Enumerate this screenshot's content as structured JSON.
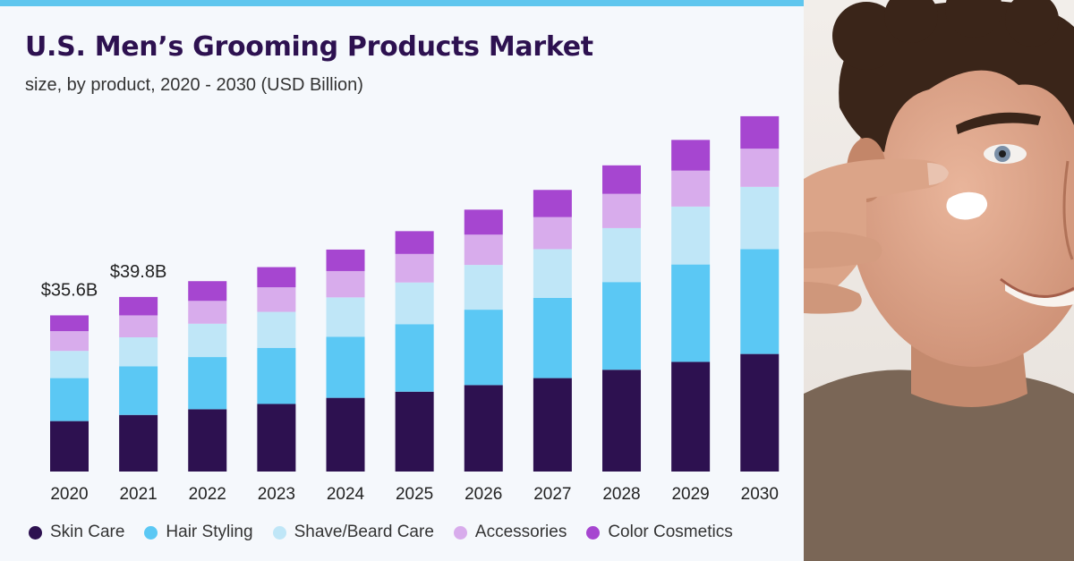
{
  "chart_data": {
    "type": "bar",
    "stacked": true,
    "title": "U.S. Men’s Grooming Products Market",
    "subtitle": "size, by product, 2020 - 2030 (USD Billion)",
    "categories": [
      "2020",
      "2021",
      "2022",
      "2023",
      "2024",
      "2025",
      "2026",
      "2027",
      "2028",
      "2029",
      "2030"
    ],
    "series": [
      {
        "name": "Skin Care",
        "color": "#2d1150",
        "values": [
          11.5,
          12.9,
          14.2,
          15.4,
          16.8,
          18.2,
          19.7,
          21.3,
          23.2,
          25.0,
          26.8
        ]
      },
      {
        "name": "Hair Styling",
        "color": "#5bc8f4",
        "values": [
          9.8,
          11.1,
          11.9,
          12.8,
          13.9,
          15.4,
          17.2,
          18.3,
          20.0,
          22.2,
          23.9
        ]
      },
      {
        "name": "Shave/Beard Care",
        "color": "#bfe6f7",
        "values": [
          6.2,
          6.6,
          7.6,
          8.2,
          9.0,
          9.5,
          10.2,
          11.1,
          12.3,
          13.2,
          14.2
        ]
      },
      {
        "name": "Accessories",
        "color": "#d8acec",
        "values": [
          4.5,
          5.0,
          5.2,
          5.6,
          6.0,
          6.5,
          6.9,
          7.3,
          7.8,
          8.2,
          8.7
        ]
      },
      {
        "name": "Color Cosmetics",
        "color": "#a646d0",
        "values": [
          3.6,
          4.2,
          4.5,
          4.6,
          4.9,
          5.2,
          5.7,
          6.2,
          6.5,
          7.0,
          7.4
        ]
      }
    ],
    "annotations": [
      {
        "category": "2020",
        "text": "$35.6B"
      },
      {
        "category": "2021",
        "text": "$39.8B"
      }
    ],
    "ylim": [
      0,
      82
    ],
    "grid": false,
    "legend_position": "bottom"
  },
  "colors": {
    "accent_bar": "#5fc6ee",
    "title": "#2d1150"
  },
  "photo": {
    "icon": "man-applying-cream-photo"
  }
}
